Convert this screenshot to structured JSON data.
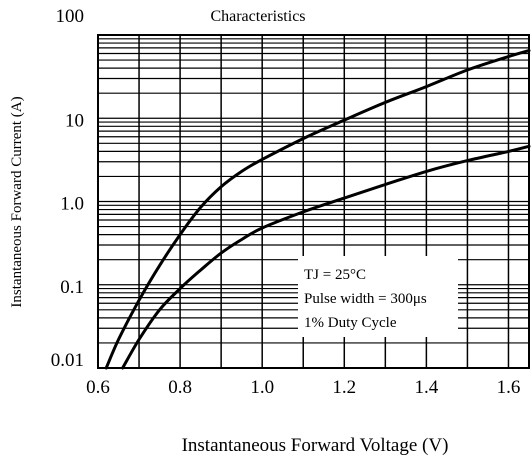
{
  "chart_data": {
    "type": "line",
    "title": "Characteristics",
    "xlabel": "Instantaneous Forward Voltage (V)",
    "ylabel": "Instantaneous Forward Current (A)",
    "xlim": [
      0.6,
      1.65
    ],
    "ylim": [
      0.01,
      100
    ],
    "yscale": "log",
    "grid": true,
    "x_ticks": [
      0.6,
      0.8,
      1.0,
      1.2,
      1.4,
      1.6
    ],
    "x_tick_labels": [
      "0.6",
      "0.8",
      "1.0",
      "1.2",
      "1.4",
      "1.6"
    ],
    "y_ticks": [
      0.01,
      0.1,
      1,
      10,
      100
    ],
    "y_tick_labels": [
      "0.01",
      "0.1",
      "1.0",
      "10",
      "100"
    ],
    "series": [
      {
        "x": [
          0.62,
          0.65,
          0.7,
          0.75,
          0.8,
          0.85,
          0.9,
          0.95,
          1.0,
          1.1,
          1.2,
          1.3,
          1.4,
          1.5,
          1.6,
          1.65
        ],
        "y": [
          0.01,
          0.022,
          0.065,
          0.17,
          0.4,
          0.85,
          1.5,
          2.3,
          3.2,
          5.7,
          9.5,
          15.5,
          24,
          38,
          55,
          65
        ]
      },
      {
        "x": [
          0.66,
          0.7,
          0.75,
          0.8,
          0.85,
          0.9,
          0.95,
          1.0,
          1.1,
          1.2,
          1.3,
          1.4,
          1.5,
          1.6,
          1.65
        ],
        "y": [
          0.01,
          0.022,
          0.05,
          0.09,
          0.15,
          0.24,
          0.35,
          0.48,
          0.75,
          1.1,
          1.6,
          2.3,
          3.1,
          4.0,
          4.6
        ]
      }
    ],
    "annotations": [
      "TJ = 25°C",
      "Pulse width = 300μs",
      "1% Duty Cycle"
    ]
  }
}
